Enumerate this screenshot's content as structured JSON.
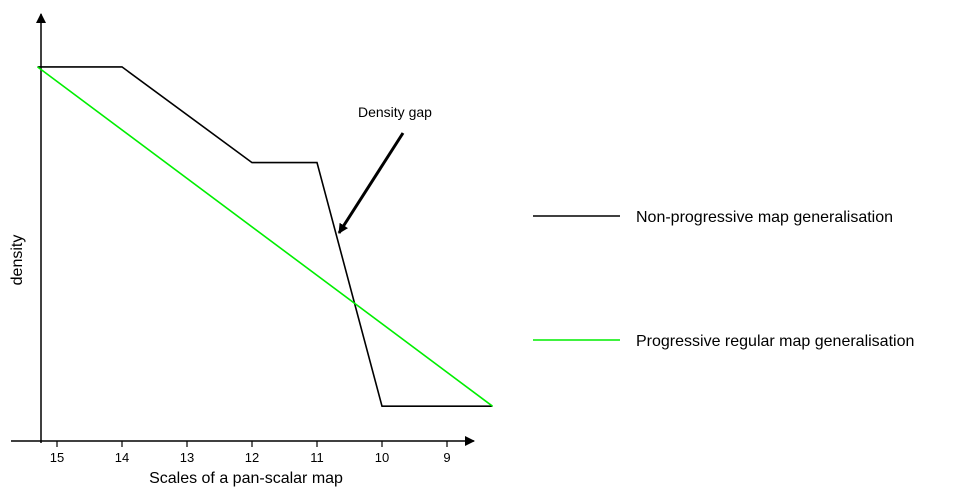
{
  "chart_data": {
    "type": "line",
    "title": "",
    "xlabel": "Scales of a pan-scalar map",
    "ylabel": "density",
    "x_ticks": [
      15,
      14,
      13,
      12,
      11,
      10,
      9
    ],
    "x_direction": "descending",
    "grid": false,
    "legend_placement": "right",
    "series": [
      {
        "name": "Non-progressive map generalisation",
        "color": "#000000",
        "points": [
          [
            15.3,
            0.86
          ],
          [
            14,
            0.86
          ],
          [
            12,
            0.64
          ],
          [
            11,
            0.64
          ],
          [
            10,
            0.08
          ],
          [
            8.3,
            0.08
          ]
        ]
      },
      {
        "name": "Progressive regular map generalisation",
        "color": "#00ee00",
        "points": [
          [
            15.3,
            0.86
          ],
          [
            8.3,
            0.08
          ]
        ]
      }
    ],
    "annotations": [
      {
        "text": "Density gap",
        "arrow_to": [
          10.35,
          0.42
        ]
      }
    ]
  }
}
